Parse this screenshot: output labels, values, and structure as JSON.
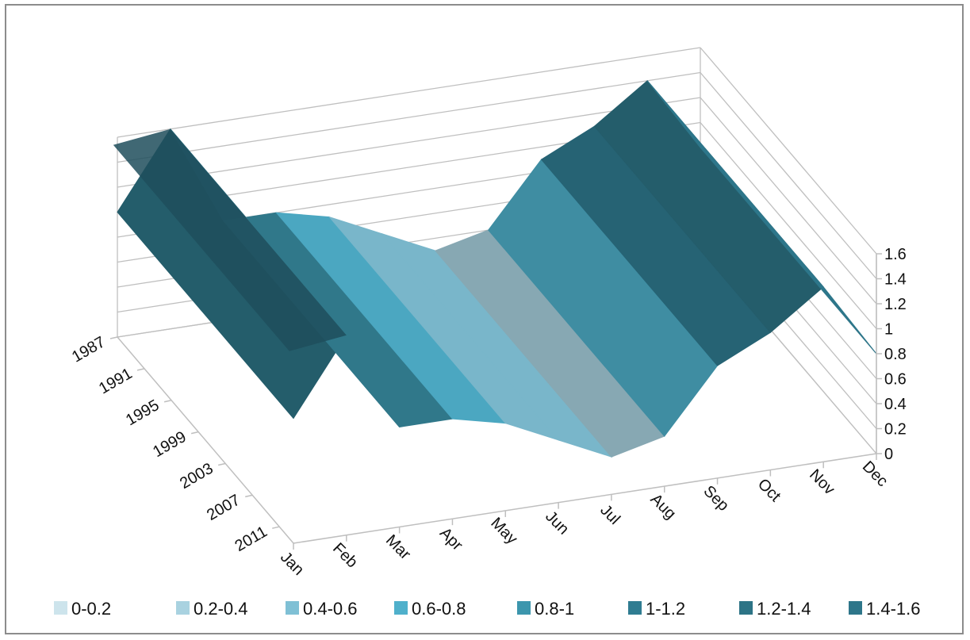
{
  "chart_data": {
    "type": "surface",
    "title": "",
    "x_categories": [
      "Jan",
      "Feb",
      "Mar",
      "Apr",
      "May",
      "Jun",
      "Jul",
      "Aug",
      "Sep",
      "Oct",
      "Nov",
      "Dec"
    ],
    "y_series_labels": [
      "1987",
      "1991",
      "1995",
      "1999",
      "2003",
      "2007",
      "2011"
    ],
    "z_ticks": [
      "0",
      "0.2",
      "0.4",
      "0.6",
      "0.8",
      "1",
      "1.2",
      "1.4",
      "1.6"
    ],
    "z_range": [
      0,
      1.6
    ],
    "grid": true,
    "legend_position": "bottom",
    "legend": [
      {
        "label": "0-0.2",
        "color": "#cde4ec"
      },
      {
        "label": "0.2-0.4",
        "color": "#a9d2e0"
      },
      {
        "label": "0.4-0.6",
        "color": "#7fc0d5"
      },
      {
        "label": "0.6-0.8",
        "color": "#4fb0cb"
      },
      {
        "label": "0.8-1",
        "color": "#3c96ad"
      },
      {
        "label": "1-1.2",
        "color": "#2f7c91"
      },
      {
        "label": "1.2-1.4",
        "color": "#2d7486"
      },
      {
        "label": "1.4-1.6",
        "color": "#2e768a"
      }
    ],
    "monthly_values_approx": [
      1.0,
      1.6,
      0.8,
      0.8,
      0.7,
      0.5,
      0.3,
      0.4,
      0.9,
      1.1,
      1.4,
      0.8
    ]
  }
}
